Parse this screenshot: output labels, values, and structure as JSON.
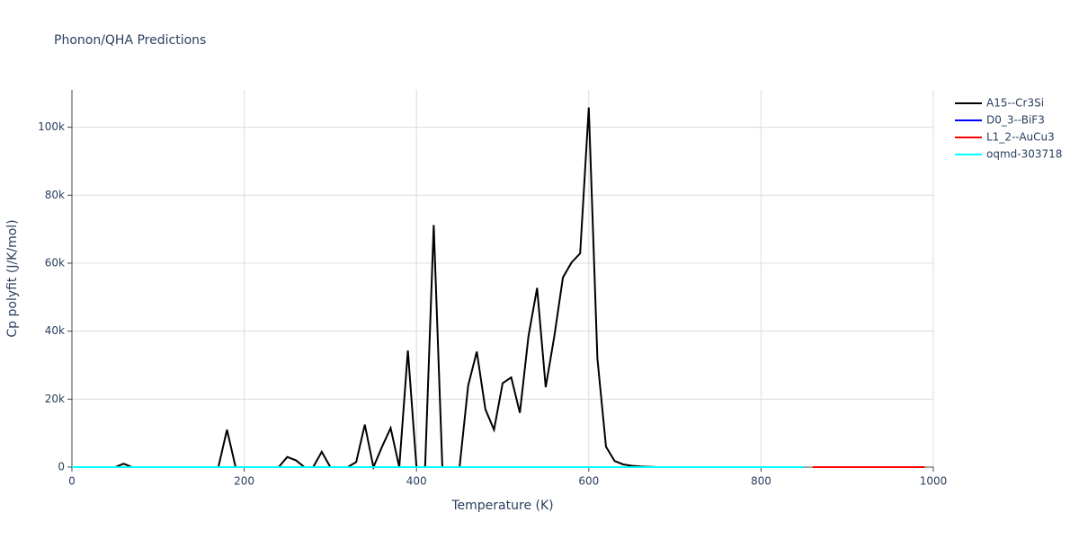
{
  "chart_data": {
    "type": "line",
    "title": "Phonon/QHA Predictions",
    "xlabel": "Temperature (K)",
    "ylabel": "Cp polyfit (J/K/mol)",
    "xlim": [
      0,
      1000
    ],
    "xticks": [
      0,
      200,
      400,
      600,
      800,
      1000
    ],
    "ylim": [
      0,
      111000
    ],
    "yticks": [
      0,
      {
        "value": 20000,
        "label": "20k"
      },
      {
        "value": 40000,
        "label": "40k"
      },
      {
        "value": 60000,
        "label": "60k"
      },
      {
        "value": 80000,
        "label": "80k"
      },
      {
        "value": 100000,
        "label": "100k"
      }
    ],
    "grid": true,
    "legend": "right",
    "series": [
      {
        "name": "A15--Cr3Si",
        "color": "#000000",
        "x": [
          0,
          10,
          20,
          30,
          40,
          50,
          60,
          70,
          80,
          90,
          100,
          110,
          120,
          130,
          140,
          150,
          160,
          170,
          180,
          190,
          200,
          210,
          220,
          230,
          240,
          250,
          260,
          270,
          280,
          290,
          300,
          310,
          320,
          330,
          340,
          350,
          360,
          370,
          380,
          390,
          400,
          410,
          420,
          430,
          440,
          450,
          460,
          470,
          480,
          490,
          500,
          510,
          520,
          530,
          540,
          550,
          560,
          570,
          580,
          590,
          600,
          610,
          620,
          630,
          640,
          650,
          660,
          670,
          680,
          690,
          700,
          710,
          720,
          730,
          740,
          750,
          760,
          770,
          780,
          790,
          800,
          810,
          820,
          830,
          840,
          850
        ],
        "values": [
          0,
          0,
          0,
          0,
          0,
          0,
          1000,
          0,
          0,
          0,
          0,
          0,
          0,
          0,
          0,
          0,
          0,
          0,
          11000,
          0,
          0,
          0,
          0,
          0,
          0,
          3000,
          2000,
          0,
          0,
          4500,
          0,
          0,
          0,
          1500,
          12500,
          0,
          6000,
          11500,
          0,
          34300,
          0,
          0,
          71200,
          0,
          0,
          0,
          24000,
          34000,
          17000,
          11000,
          24700,
          26400,
          16000,
          38500,
          52700,
          23500,
          38500,
          55800,
          60200,
          62900,
          105800,
          32000,
          6000,
          1800,
          800,
          400,
          200,
          100,
          0,
          0,
          0,
          0,
          0,
          0,
          0,
          0,
          0,
          0,
          0,
          0,
          0,
          0,
          0,
          0,
          0,
          0
        ]
      },
      {
        "name": "D0_3--BiF3",
        "color": "#0000ff",
        "x": [
          0,
          10,
          20,
          30,
          40,
          50,
          60,
          70,
          80,
          90,
          100,
          110,
          120,
          130,
          140,
          150,
          160,
          170,
          180,
          190,
          200,
          210,
          220,
          230,
          240,
          250,
          260,
          270,
          280,
          290,
          300,
          310,
          320,
          330,
          340,
          350,
          360,
          370,
          380,
          390,
          400,
          410,
          420,
          430,
          440,
          450,
          460,
          470,
          480,
          490,
          500,
          510,
          520,
          530,
          540,
          550,
          560,
          570,
          580,
          590,
          600,
          610,
          620,
          630,
          640,
          650,
          660,
          670,
          680,
          690,
          700,
          710,
          720,
          730,
          740,
          750,
          760,
          770,
          780,
          790,
          800,
          810,
          820,
          830,
          840,
          850
        ],
        "values": [
          0,
          0,
          0,
          0,
          0,
          0,
          0,
          0,
          0,
          0,
          0,
          0,
          0,
          0,
          0,
          0,
          0,
          0,
          0,
          0,
          0,
          0,
          0,
          0,
          0,
          0,
          0,
          0,
          0,
          0,
          0,
          0,
          0,
          0,
          0,
          0,
          0,
          0,
          0,
          0,
          0,
          0,
          0,
          0,
          0,
          0,
          0,
          0,
          0,
          0,
          0,
          0,
          0,
          0,
          0,
          0,
          0,
          0,
          0,
          0,
          0,
          0,
          0,
          0,
          0,
          0,
          0,
          0,
          0,
          0,
          0,
          0,
          0,
          0,
          0,
          0,
          0,
          0,
          0,
          0,
          0,
          0,
          0,
          0,
          0,
          0
        ]
      },
      {
        "name": "L1_2--AuCu3",
        "color": "#ff0000",
        "x": [
          860,
          870,
          880,
          890,
          900,
          910,
          920,
          930,
          940,
          950,
          960,
          970,
          980,
          990
        ],
        "values": [
          0,
          0,
          0,
          0,
          0,
          0,
          0,
          0,
          0,
          0,
          0,
          0,
          0,
          0
        ]
      },
      {
        "name": "oqmd-303718",
        "color": "#00ffff",
        "x": [
          0,
          10,
          20,
          30,
          40,
          50,
          60,
          70,
          80,
          90,
          100,
          110,
          120,
          130,
          140,
          150,
          160,
          170,
          180,
          190,
          200,
          210,
          220,
          230,
          240,
          250,
          260,
          270,
          280,
          290,
          300,
          310,
          320,
          330,
          340,
          350,
          360,
          370,
          380,
          390,
          400,
          410,
          420,
          430,
          440,
          450,
          460,
          470,
          480,
          490,
          500,
          510,
          520,
          530,
          540,
          550,
          560,
          570,
          580,
          590,
          600,
          610,
          620,
          630,
          640,
          650,
          660,
          670,
          680,
          690,
          700,
          710,
          720,
          730,
          740,
          750,
          760,
          770,
          780,
          790,
          800,
          810,
          820,
          830,
          840,
          850
        ],
        "values": [
          0,
          0,
          0,
          0,
          0,
          0,
          0,
          0,
          0,
          0,
          0,
          0,
          0,
          0,
          0,
          0,
          0,
          0,
          0,
          0,
          0,
          0,
          0,
          0,
          0,
          0,
          0,
          0,
          0,
          0,
          0,
          0,
          0,
          0,
          0,
          0,
          0,
          0,
          0,
          0,
          0,
          0,
          0,
          0,
          0,
          0,
          0,
          0,
          0,
          0,
          0,
          0,
          0,
          0,
          0,
          0,
          0,
          0,
          0,
          0,
          0,
          0,
          0,
          0,
          0,
          0,
          0,
          0,
          0,
          0,
          0,
          0,
          0,
          0,
          0,
          0,
          0,
          0,
          0,
          0,
          0,
          0,
          0,
          0,
          0,
          0
        ]
      }
    ]
  }
}
